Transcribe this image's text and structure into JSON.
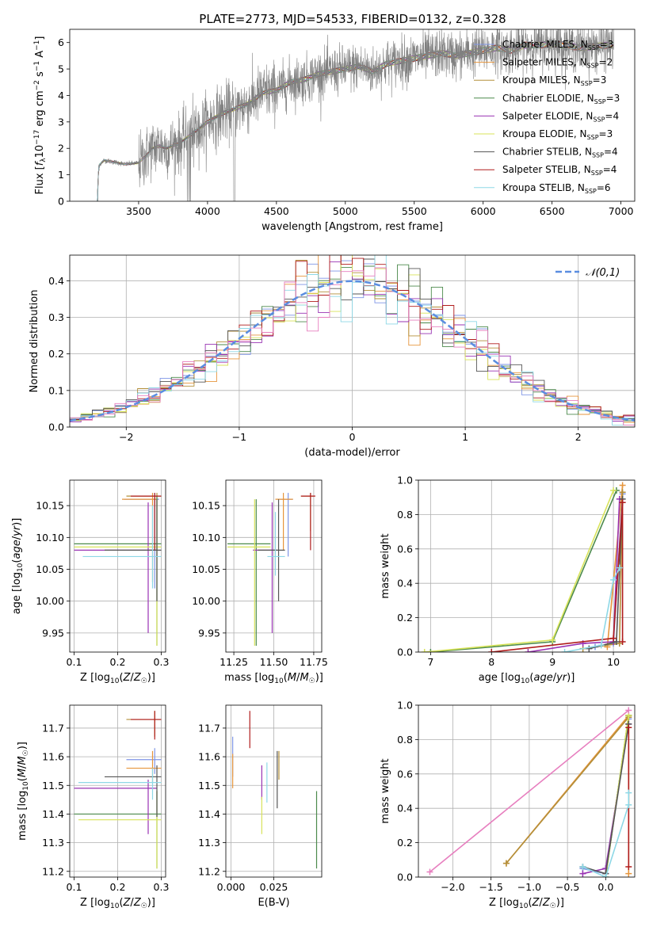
{
  "figure_title": "PLATE=2773, MJD=54533, FIBERID=0132, z=0.328",
  "series_styles": [
    {
      "name": "Chabrier MILES",
      "nssp": "3",
      "color": "#7f95e6"
    },
    {
      "name": "Salpeter MILES",
      "nssp": "2",
      "color": "#e6953c"
    },
    {
      "name": "Kroupa MILES",
      "nssp": "3",
      "color": "#b38f3a"
    },
    {
      "name": "Chabrier ELODIE",
      "nssp": "3",
      "color": "#4c8a4c"
    },
    {
      "name": "Salpeter ELODIE",
      "nssp": "4",
      "color": "#9933b3"
    },
    {
      "name": "Kroupa ELODIE",
      "nssp": "3",
      "color": "#d8e35a"
    },
    {
      "name": "Chabrier STELIB",
      "nssp": "4",
      "color": "#555555"
    },
    {
      "name": "Salpeter STELIB",
      "nssp": "4",
      "color": "#b01c1c"
    },
    {
      "name": "Kroupa STELIB",
      "nssp": "6",
      "color": "#8ed8e6"
    }
  ],
  "chart_data": [
    {
      "id": "spectrum",
      "type": "line",
      "xlabel": "wavelength [Angstrom, rest frame]",
      "ylabel": "Flux [f_λ 10^-17 erg cm^-2 s^-1 A^-1]",
      "xlim": [
        3000,
        7100
      ],
      "ylim": [
        0,
        6.5
      ],
      "xticks": [
        3500,
        4000,
        4500,
        5000,
        5500,
        6000,
        6500,
        7000
      ],
      "yticks": [
        0,
        1,
        2,
        3,
        4,
        5,
        6
      ],
      "legend_position": "right",
      "data_color": "#808080",
      "data_range": [
        3200,
        6950
      ],
      "continuum": [
        [
          3200,
          0
        ],
        [
          3210,
          1.35
        ],
        [
          3250,
          1.55
        ],
        [
          3300,
          1.5
        ],
        [
          3400,
          1.4
        ],
        [
          3500,
          1.45
        ],
        [
          3550,
          1.7
        ],
        [
          3600,
          2.0
        ],
        [
          3650,
          2.1
        ],
        [
          3700,
          2.0
        ],
        [
          3800,
          2.2
        ],
        [
          3900,
          2.6
        ],
        [
          4000,
          3.0
        ],
        [
          4100,
          3.3
        ],
        [
          4200,
          3.5
        ],
        [
          4300,
          3.7
        ],
        [
          4400,
          4.1
        ],
        [
          4500,
          4.2
        ],
        [
          4600,
          4.5
        ],
        [
          4700,
          4.6
        ],
        [
          4800,
          4.8
        ],
        [
          4900,
          4.9
        ],
        [
          5000,
          5.0
        ],
        [
          5100,
          5.1
        ],
        [
          5200,
          4.9
        ],
        [
          5300,
          5.2
        ],
        [
          5400,
          5.3
        ],
        [
          5500,
          5.4
        ],
        [
          5600,
          5.5
        ],
        [
          5700,
          5.6
        ],
        [
          5800,
          5.5
        ],
        [
          5900,
          5.6
        ],
        [
          6000,
          5.7
        ],
        [
          6100,
          5.8
        ],
        [
          6200,
          5.7
        ],
        [
          6300,
          5.9
        ],
        [
          6400,
          5.9
        ],
        [
          6500,
          5.95
        ],
        [
          6600,
          5.9
        ],
        [
          6700,
          5.8
        ],
        [
          6800,
          5.85
        ],
        [
          6900,
          5.9
        ],
        [
          6950,
          5.9
        ]
      ]
    },
    {
      "id": "residuals",
      "type": "histogram",
      "xlabel": "(data-model)/error",
      "ylabel": "Normed distribution",
      "xlim": [
        -2.5,
        2.5
      ],
      "ylim": [
        0,
        0.47
      ],
      "xticks": [
        -2,
        -1,
        0,
        1,
        2
      ],
      "yticks": [
        0.0,
        0.1,
        0.2,
        0.3,
        0.4
      ],
      "bin_width": 0.1,
      "legend": "𝒩(0,1)",
      "normal_color": "#5a8de0"
    },
    {
      "id": "age_vs_Z",
      "type": "errorbar",
      "xlabel": "Z [log10(Z/Z☉)]",
      "ylabel": "age [log10(age/yr)]",
      "xlim": [
        0.09,
        0.31
      ],
      "ylim": [
        9.92,
        10.19
      ],
      "xticks": [
        0.1,
        0.2,
        0.3
      ],
      "yticks": [
        9.95,
        10.0,
        10.05,
        10.1,
        10.15
      ],
      "points": [
        {
          "s": 0,
          "x": 0.285,
          "xe": [
            0.215,
            0.295
          ],
          "y": 10.16,
          "ye": [
            10.02,
            10.17
          ]
        },
        {
          "s": 1,
          "x": 0.28,
          "xe": [
            0.21,
            0.29
          ],
          "y": 10.16,
          "ye": [
            10.03,
            10.17
          ]
        },
        {
          "s": 2,
          "x": 0.29,
          "xe": [
            0.22,
            0.3
          ],
          "y": 10.165,
          "ye": [
            10.08,
            10.17
          ]
        },
        {
          "s": 3,
          "x": 0.29,
          "xe": [
            0.1,
            0.3
          ],
          "y": 10.09,
          "ye": [
            9.93,
            10.165
          ]
        },
        {
          "s": 4,
          "x": 0.27,
          "xe": [
            0.1,
            0.29
          ],
          "y": 10.08,
          "ye": [
            9.95,
            10.155
          ]
        },
        {
          "s": 5,
          "x": 0.29,
          "xe": [
            0.1,
            0.3
          ],
          "y": 10.085,
          "ye": [
            9.93,
            10.16
          ]
        },
        {
          "s": 6,
          "x": 0.29,
          "xe": [
            0.17,
            0.3
          ],
          "y": 10.08,
          "ye": [
            10.0,
            10.16
          ]
        },
        {
          "s": 7,
          "x": 0.285,
          "xe": [
            0.23,
            0.3
          ],
          "y": 10.165,
          "ye": [
            10.08,
            10.17
          ]
        },
        {
          "s": 8,
          "x": 0.28,
          "xe": [
            0.12,
            0.3
          ],
          "y": 10.07,
          "ye": [
            10.02,
            10.15
          ]
        }
      ]
    },
    {
      "id": "age_vs_mass",
      "type": "errorbar",
      "xlabel": "mass [log10(M/M☉)]",
      "ylabel": "",
      "xlim": [
        11.2,
        11.8
      ],
      "ylim": [
        9.92,
        10.19
      ],
      "xticks": [
        11.25,
        11.5,
        11.75
      ],
      "yticks": [
        9.95,
        10.0,
        10.05,
        10.1,
        10.15
      ],
      "points": [
        {
          "s": 0,
          "x": 11.59,
          "xe": [
            11.54,
            11.62
          ],
          "y": 10.16,
          "ye": [
            10.07,
            10.17
          ]
        },
        {
          "s": 1,
          "x": 11.56,
          "xe": [
            11.51,
            11.62
          ],
          "y": 10.16,
          "ye": [
            10.08,
            10.17
          ]
        },
        {
          "s": 2,
          "x": 11.73,
          "xe": [
            11.67,
            11.75
          ],
          "y": 10.165,
          "ye": [
            10.11,
            10.17
          ]
        },
        {
          "s": 3,
          "x": 11.39,
          "xe": [
            11.21,
            11.48
          ],
          "y": 10.09,
          "ye": [
            9.93,
            10.16
          ]
        },
        {
          "s": 4,
          "x": 11.49,
          "xe": [
            11.37,
            11.52
          ],
          "y": 10.08,
          "ye": [
            9.95,
            10.155
          ]
        },
        {
          "s": 5,
          "x": 11.38,
          "xe": [
            11.21,
            11.48
          ],
          "y": 10.085,
          "ye": [
            9.93,
            10.16
          ]
        },
        {
          "s": 6,
          "x": 11.53,
          "xe": [
            11.4,
            11.57
          ],
          "y": 10.08,
          "ye": [
            10.0,
            10.16
          ]
        },
        {
          "s": 7,
          "x": 11.73,
          "xe": [
            11.67,
            11.76
          ],
          "y": 10.165,
          "ye": [
            10.08,
            10.17
          ]
        },
        {
          "s": 8,
          "x": 11.51,
          "xe": [
            11.46,
            11.57
          ],
          "y": 10.07,
          "ye": [
            10.04,
            10.14
          ]
        }
      ]
    },
    {
      "id": "mass_vs_Z",
      "type": "errorbar",
      "xlabel": "Z [log10(Z/Z☉)]",
      "ylabel": "mass [log10(M/M☉)]",
      "xlim": [
        0.09,
        0.31
      ],
      "ylim": [
        11.18,
        11.78
      ],
      "xticks": [
        0.1,
        0.2,
        0.3
      ],
      "yticks": [
        11.2,
        11.3,
        11.4,
        11.5,
        11.6,
        11.7
      ],
      "points": [
        {
          "s": 0,
          "x": 0.285,
          "xe": [
            0.22,
            0.3
          ],
          "y": 11.59,
          "ye": [
            11.54,
            11.63
          ]
        },
        {
          "s": 1,
          "x": 0.28,
          "xe": [
            0.22,
            0.3
          ],
          "y": 11.56,
          "ye": [
            11.51,
            11.62
          ]
        },
        {
          "s": 2,
          "x": 0.285,
          "xe": [
            0.22,
            0.3
          ],
          "y": 11.73,
          "ye": [
            11.67,
            11.76
          ]
        },
        {
          "s": 3,
          "x": 0.29,
          "xe": [
            0.1,
            0.3
          ],
          "y": 11.4,
          "ye": [
            11.21,
            11.48
          ]
        },
        {
          "s": 4,
          "x": 0.27,
          "xe": [
            0.1,
            0.29
          ],
          "y": 11.49,
          "ye": [
            11.33,
            11.52
          ]
        },
        {
          "s": 5,
          "x": 0.29,
          "xe": [
            0.11,
            0.3
          ],
          "y": 11.38,
          "ye": [
            11.21,
            11.48
          ]
        },
        {
          "s": 6,
          "x": 0.29,
          "xe": [
            0.17,
            0.3
          ],
          "y": 11.53,
          "ye": [
            11.39,
            11.57
          ]
        },
        {
          "s": 7,
          "x": 0.285,
          "xe": [
            0.23,
            0.3
          ],
          "y": 11.73,
          "ye": [
            11.66,
            11.76
          ]
        },
        {
          "s": 8,
          "x": 0.28,
          "xe": [
            0.11,
            0.3
          ],
          "y": 11.51,
          "ye": [
            11.45,
            11.56
          ]
        }
      ]
    },
    {
      "id": "mass_vs_ebv",
      "type": "errorbar",
      "xlabel": "E(B-V)",
      "ylabel": "",
      "xlim": [
        -0.003,
        0.053
      ],
      "ylim": [
        11.18,
        11.78
      ],
      "xticks": [
        0.0,
        0.025
      ],
      "yticks": [
        11.2,
        11.3,
        11.4,
        11.5,
        11.6,
        11.7
      ],
      "points": [
        {
          "s": 0,
          "x": 0.001,
          "xe": [
            0.001,
            0.001
          ],
          "y": 11.57,
          "ye": [
            11.53,
            11.67
          ]
        },
        {
          "s": 1,
          "x": 0.001,
          "xe": [
            0.001,
            0.001
          ],
          "y": 11.56,
          "ye": [
            11.49,
            11.61
          ]
        },
        {
          "s": 2,
          "x": 0.028,
          "xe": [
            0.028,
            0.028
          ],
          "y": 11.59,
          "ye": [
            11.52,
            11.62
          ]
        },
        {
          "s": 3,
          "x": 0.05,
          "xe": [
            0.05,
            0.05
          ],
          "y": 11.4,
          "ye": [
            11.21,
            11.48
          ]
        },
        {
          "s": 4,
          "x": 0.018,
          "xe": [
            0.018,
            0.018
          ],
          "y": 11.49,
          "ye": [
            11.45,
            11.57
          ]
        },
        {
          "s": 5,
          "x": 0.018,
          "xe": [
            0.018,
            0.018
          ],
          "y": 11.38,
          "ye": [
            11.33,
            11.46
          ]
        },
        {
          "s": 6,
          "x": 0.027,
          "xe": [
            0.027,
            0.027
          ],
          "y": 11.53,
          "ye": [
            11.42,
            11.62
          ]
        },
        {
          "s": 7,
          "x": 0.011,
          "xe": [
            0.011,
            0.011
          ],
          "y": 11.73,
          "ye": [
            11.63,
            11.76
          ]
        },
        {
          "s": 8,
          "x": 0.021,
          "xe": [
            0.021,
            0.021
          ],
          "y": 11.51,
          "ye": [
            11.44,
            11.58
          ]
        }
      ]
    },
    {
      "id": "weight_vs_age",
      "type": "line",
      "xlabel": "age [log10(age/yr)]",
      "ylabel": "mass weight",
      "xlim": [
        6.8,
        10.35
      ],
      "ylim": [
        0,
        1.0
      ],
      "xticks": [
        7,
        8,
        9,
        10
      ],
      "yticks": [
        0.0,
        0.2,
        0.4,
        0.6,
        0.8,
        1.0
      ],
      "series": [
        {
          "s": 0,
          "points": [
            [
              9.7,
              0.03
            ],
            [
              10.0,
              0.05
            ],
            [
              10.15,
              0.92
            ]
          ]
        },
        {
          "s": 1,
          "points": [
            [
              9.9,
              0.03
            ],
            [
              10.15,
              0.97
            ]
          ]
        },
        {
          "s": 2,
          "points": [
            [
              9.5,
              0.02
            ],
            [
              10.1,
              0.05
            ],
            [
              10.15,
              0.93
            ]
          ]
        },
        {
          "s": 3,
          "points": [
            [
              7.0,
              0.0
            ],
            [
              9.0,
              0.06
            ],
            [
              10.05,
              0.94
            ]
          ]
        },
        {
          "s": 4,
          "points": [
            [
              8.6,
              0.0
            ],
            [
              9.5,
              0.05
            ],
            [
              10.0,
              0.06
            ],
            [
              10.1,
              0.89
            ]
          ]
        },
        {
          "s": 5,
          "points": [
            [
              6.9,
              0.0
            ],
            [
              9.0,
              0.07
            ],
            [
              10.0,
              0.94
            ]
          ]
        },
        {
          "s": 6,
          "points": [
            [
              9.6,
              0.02
            ],
            [
              10.05,
              0.06
            ],
            [
              10.15,
              0.89
            ]
          ]
        },
        {
          "s": 7,
          "points": [
            [
              8.0,
              0.0
            ],
            [
              10.0,
              0.08
            ],
            [
              10.15,
              0.87
            ],
            [
              10.15,
              0.06
            ]
          ]
        },
        {
          "s": 8,
          "points": [
            [
              9.2,
              0.0
            ],
            [
              9.8,
              0.04
            ],
            [
              10.0,
              0.42
            ],
            [
              10.1,
              0.49
            ]
          ]
        }
      ]
    },
    {
      "id": "weight_vs_Z",
      "type": "line",
      "xlabel": "Z [log10(Z/Z☉)]",
      "ylabel": "mass weight",
      "xlim": [
        -2.45,
        0.38
      ],
      "ylim": [
        0,
        1.0
      ],
      "xticks": [
        -2.0,
        -1.5,
        -1.0,
        -0.5,
        0.0
      ],
      "yticks": [
        0.0,
        0.2,
        0.4,
        0.6,
        0.8,
        1.0
      ],
      "series": [
        {
          "s": 0,
          "points": [
            [
              -0.3,
              0.05
            ],
            [
              0.0,
              0.02
            ],
            [
              0.3,
              0.92
            ]
          ]
        },
        {
          "s": 1,
          "points": [
            [
              -1.3,
              0.08
            ],
            [
              0.3,
              0.94
            ],
            [
              0.3,
              0.02
            ]
          ]
        },
        {
          "s": 2,
          "points": [
            [
              -1.3,
              0.08
            ],
            [
              0.3,
              0.93
            ]
          ]
        },
        {
          "s": 3,
          "points": [
            [
              0.0,
              0.0
            ],
            [
              0.3,
              0.94
            ]
          ]
        },
        {
          "s": 4,
          "points": [
            [
              -0.3,
              0.02
            ],
            [
              0.0,
              0.05
            ],
            [
              0.3,
              0.89
            ]
          ]
        },
        {
          "s": 5,
          "points": [
            [
              0.0,
              0.0
            ],
            [
              0.3,
              0.94
            ]
          ]
        },
        {
          "s": 6,
          "points": [
            [
              -0.3,
              0.06
            ],
            [
              0.0,
              0.02
            ],
            [
              0.3,
              0.89
            ]
          ]
        },
        {
          "s": 7,
          "points": [
            [
              0.3,
              0.06
            ],
            [
              0.3,
              0.87
            ]
          ]
        },
        {
          "s": 8,
          "points": [
            [
              -0.3,
              0.06
            ],
            [
              0.0,
              0.0
            ],
            [
              0.3,
              0.42
            ],
            [
              0.3,
              0.49
            ]
          ]
        },
        {
          "s": 1,
          "points": [
            [
              -2.3,
              0.03
            ],
            [
              0.3,
              0.97
            ]
          ],
          "color": "#e77fbf"
        }
      ]
    }
  ]
}
